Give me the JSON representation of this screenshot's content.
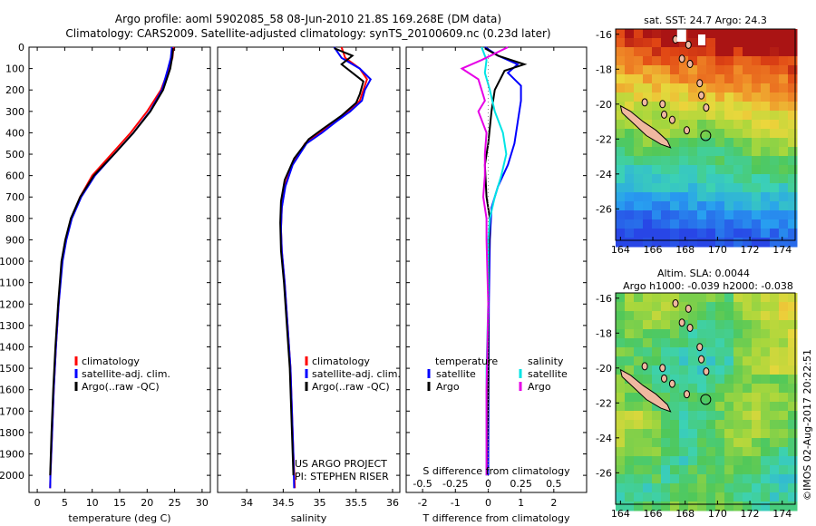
{
  "title_line1": "Argo profile: aoml 5902085_58 08-Jun-2010 21.8S 169.268E (DM data)",
  "title_line2": "Climatology: CARS2009. Satellite-adjusted climatology: synTS_20100609.nc (0.23d later)",
  "colors": {
    "climatology": "#ff0000",
    "satellite": "#0000ff",
    "argo": "#000000",
    "sat_salinity": "#00e5e5",
    "argo_salinity": "#e600e6"
  },
  "credits": {
    "project": "US ARGO PROJECT",
    "pi": "PI: STEPHEN RISER"
  },
  "stamp": "©IMOS 02-Aug-2017 20:22:51",
  "chart_data": [
    {
      "id": "temperature",
      "type": "line",
      "xlabel": "temperature (deg C)",
      "ylabel": "",
      "xlim": [
        -1.5,
        31.5
      ],
      "ylim": [
        2080,
        0
      ],
      "xticks": [
        0,
        5,
        10,
        15,
        20,
        25,
        30
      ],
      "yticks": [
        0,
        100,
        200,
        300,
        400,
        500,
        600,
        700,
        800,
        900,
        1000,
        1100,
        1200,
        1300,
        1400,
        1500,
        1600,
        1700,
        1800,
        1900,
        2000
      ],
      "legend": [
        "climatology",
        "satellite-adj. clim.",
        "Argo(..raw -QC)"
      ],
      "series": [
        {
          "name": "climatology",
          "color": "#ff0000",
          "points": [
            [
              24.8,
              0
            ],
            [
              24.6,
              50
            ],
            [
              24.0,
              100
            ],
            [
              22.5,
              200
            ],
            [
              20.0,
              300
            ],
            [
              17.0,
              400
            ],
            [
              13.5,
              500
            ],
            [
              10.0,
              600
            ],
            [
              7.8,
              700
            ],
            [
              6.2,
              800
            ],
            [
              5.2,
              900
            ],
            [
              4.5,
              1000
            ],
            [
              3.9,
              1200
            ],
            [
              3.4,
              1400
            ],
            [
              3.0,
              1600
            ],
            [
              2.7,
              1800
            ],
            [
              2.4,
              2000
            ],
            [
              2.35,
              2060
            ]
          ]
        },
        {
          "name": "satellite-adj. clim.",
          "color": "#0000ff",
          "points": [
            [
              24.5,
              0
            ],
            [
              24.3,
              50
            ],
            [
              23.8,
              100
            ],
            [
              22.7,
              200
            ],
            [
              20.5,
              300
            ],
            [
              17.5,
              400
            ],
            [
              14.0,
              500
            ],
            [
              10.5,
              600
            ],
            [
              8.0,
              700
            ],
            [
              6.3,
              800
            ],
            [
              5.3,
              900
            ],
            [
              4.6,
              1000
            ],
            [
              3.9,
              1200
            ],
            [
              3.4,
              1400
            ],
            [
              3.0,
              1600
            ],
            [
              2.7,
              1800
            ],
            [
              2.4,
              2000
            ],
            [
              2.35,
              2060
            ]
          ]
        },
        {
          "name": "Argo(..raw -QC)",
          "color": "#000000",
          "points": [
            [
              24.7,
              5
            ],
            [
              24.6,
              40
            ],
            [
              24.2,
              100
            ],
            [
              22.9,
              200
            ],
            [
              20.6,
              300
            ],
            [
              17.5,
              400
            ],
            [
              14.0,
              500
            ],
            [
              10.3,
              600
            ],
            [
              7.8,
              700
            ],
            [
              6.1,
              800
            ],
            [
              5.1,
              900
            ],
            [
              4.4,
              1000
            ],
            [
              3.8,
              1200
            ],
            [
              3.3,
              1400
            ],
            [
              2.9,
              1600
            ],
            [
              2.6,
              1800
            ],
            [
              2.35,
              2000
            ]
          ]
        }
      ]
    },
    {
      "id": "salinity",
      "type": "line",
      "xlabel": "salinity",
      "ylabel": "",
      "xlim": [
        33.6,
        36.1
      ],
      "ylim": [
        2080,
        0
      ],
      "xticks": [
        34,
        34.5,
        35,
        35.5,
        36
      ],
      "legend": [
        "climatology",
        "satellite-adj. clim.",
        "Argo(..raw -QC)"
      ],
      "series": [
        {
          "name": "climatology",
          "color": "#ff0000",
          "points": [
            [
              35.3,
              0
            ],
            [
              35.35,
              50
            ],
            [
              35.55,
              100
            ],
            [
              35.65,
              150
            ],
            [
              35.6,
              200
            ],
            [
              35.55,
              250
            ],
            [
              35.4,
              300
            ],
            [
              35.2,
              350
            ],
            [
              35.0,
              400
            ],
            [
              34.8,
              450
            ],
            [
              34.62,
              550
            ],
            [
              34.52,
              650
            ],
            [
              34.48,
              750
            ],
            [
              34.47,
              850
            ],
            [
              34.48,
              950
            ],
            [
              34.52,
              1100
            ],
            [
              34.56,
              1300
            ],
            [
              34.6,
              1500
            ],
            [
              34.62,
              1700
            ],
            [
              34.64,
              1900
            ],
            [
              34.66,
              2060
            ]
          ]
        },
        {
          "name": "satellite-adj. clim.",
          "color": "#0000ff",
          "points": [
            [
              35.2,
              0
            ],
            [
              35.3,
              50
            ],
            [
              35.55,
              100
            ],
            [
              35.7,
              150
            ],
            [
              35.62,
              200
            ],
            [
              35.58,
              250
            ],
            [
              35.42,
              300
            ],
            [
              35.22,
              350
            ],
            [
              35.03,
              400
            ],
            [
              34.82,
              450
            ],
            [
              34.63,
              550
            ],
            [
              34.53,
              650
            ],
            [
              34.48,
              750
            ],
            [
              34.47,
              850
            ],
            [
              34.48,
              950
            ],
            [
              34.52,
              1100
            ],
            [
              34.56,
              1300
            ],
            [
              34.6,
              1500
            ],
            [
              34.62,
              1700
            ],
            [
              34.64,
              1900
            ],
            [
              34.65,
              2060
            ]
          ]
        },
        {
          "name": "Argo(..raw -QC)",
          "color": "#000000",
          "points": [
            [
              35.2,
              5
            ],
            [
              35.45,
              40
            ],
            [
              35.3,
              80
            ],
            [
              35.45,
              120
            ],
            [
              35.6,
              160
            ],
            [
              35.55,
              220
            ],
            [
              35.5,
              260
            ],
            [
              35.3,
              320
            ],
            [
              35.05,
              380
            ],
            [
              34.85,
              430
            ],
            [
              34.65,
              520
            ],
            [
              34.52,
              620
            ],
            [
              34.47,
              720
            ],
            [
              34.46,
              820
            ],
            [
              34.47,
              950
            ],
            [
              34.51,
              1100
            ],
            [
              34.55,
              1300
            ],
            [
              34.59,
              1500
            ],
            [
              34.61,
              1700
            ],
            [
              34.63,
              1900
            ],
            [
              34.64,
              2000
            ]
          ]
        }
      ]
    },
    {
      "id": "difference",
      "type": "line",
      "xlabel": "T difference from climatology",
      "xlabel_top": "S difference from climatology",
      "xlim": [
        -2.5,
        3
      ],
      "ylim": [
        2080,
        0
      ],
      "xticks": [
        -2,
        -1,
        0,
        1,
        2
      ],
      "s_ticks": [
        "-0.5",
        "-0.25",
        "0",
        "0.25",
        "0.5"
      ],
      "s_tick_x": [
        -2,
        -1,
        0,
        1,
        2
      ],
      "legend_headers": [
        "temperature",
        "salinity"
      ],
      "legend": [
        "satellite",
        "Argo",
        "satellite",
        "Argo"
      ],
      "series": [
        {
          "name": "temperature satellite",
          "color": "#0000ff",
          "points": [
            [
              -0.1,
              0
            ],
            [
              0.3,
              40
            ],
            [
              0.9,
              80
            ],
            [
              0.6,
              120
            ],
            [
              1.0,
              180
            ],
            [
              1.0,
              250
            ],
            [
              0.9,
              350
            ],
            [
              0.8,
              450
            ],
            [
              0.6,
              550
            ],
            [
              0.3,
              650
            ],
            [
              0.1,
              750
            ],
            [
              0.05,
              900
            ],
            [
              0.02,
              1200
            ],
            [
              0.01,
              1600
            ],
            [
              0.0,
              2000
            ]
          ]
        },
        {
          "name": "temperature Argo",
          "color": "#000000",
          "points": [
            [
              -0.1,
              5
            ],
            [
              0.3,
              40
            ],
            [
              1.1,
              80
            ],
            [
              0.5,
              110
            ],
            [
              0.2,
              200
            ],
            [
              0.1,
              300
            ],
            [
              0.0,
              450
            ],
            [
              -0.1,
              550
            ],
            [
              -0.05,
              700
            ],
            [
              0.05,
              800
            ],
            [
              0.02,
              950
            ],
            [
              0.0,
              1200
            ],
            [
              0.0,
              1600
            ],
            [
              -0.05,
              2000
            ]
          ]
        },
        {
          "name": "salinity satellite",
          "color": "#00e5e5",
          "points": [
            [
              -0.2,
              0
            ],
            [
              -0.05,
              60
            ],
            [
              -0.1,
              120
            ],
            [
              0.05,
              200
            ],
            [
              0.2,
              300
            ],
            [
              0.45,
              400
            ],
            [
              0.55,
              500
            ],
            [
              0.4,
              600
            ],
            [
              0.2,
              700
            ],
            [
              0.05,
              800
            ],
            [
              0.0,
              900
            ],
            [
              0.0,
              1200
            ],
            [
              -0.05,
              1500
            ],
            [
              -0.05,
              1800
            ],
            [
              -0.05,
              2000
            ]
          ]
        },
        {
          "name": "salinity Argo",
          "color": "#e600e6",
          "points": [
            [
              0.6,
              0
            ],
            [
              -0.2,
              60
            ],
            [
              -0.8,
              100
            ],
            [
              -0.3,
              150
            ],
            [
              -0.1,
              250
            ],
            [
              -0.3,
              300
            ],
            [
              -0.05,
              400
            ],
            [
              -0.1,
              500
            ],
            [
              -0.1,
              600
            ],
            [
              -0.15,
              700
            ],
            [
              -0.05,
              800
            ],
            [
              -0.05,
              900
            ],
            [
              0.0,
              1200
            ],
            [
              -0.05,
              1600
            ],
            [
              -0.05,
              2000
            ]
          ]
        }
      ]
    },
    {
      "id": "map_sst",
      "type": "heatmap",
      "title": "sat. SST: 24.7  Argo: 24.3",
      "xlim": [
        163.7,
        174.8
      ],
      "ylim": [
        -27.8,
        -15.7
      ],
      "xticks": [
        164,
        166,
        168,
        170,
        172,
        174
      ],
      "yticks": [
        -16,
        -18,
        -20,
        -22,
        -24,
        -26
      ],
      "argo_position": [
        169.27,
        -21.8
      ]
    },
    {
      "id": "map_sla",
      "type": "heatmap",
      "title": "Altim. SLA: 0.0044",
      "subtitle": "Argo h1000: -0.039 h2000: -0.038",
      "xlim": [
        163.7,
        174.8
      ],
      "ylim": [
        -27.8,
        -15.7
      ],
      "xticks": [
        164,
        166,
        168,
        170,
        172,
        174
      ],
      "yticks": [
        -16,
        -18,
        -20,
        -22,
        -24,
        -26
      ],
      "argo_position": [
        169.27,
        -21.8
      ]
    }
  ]
}
